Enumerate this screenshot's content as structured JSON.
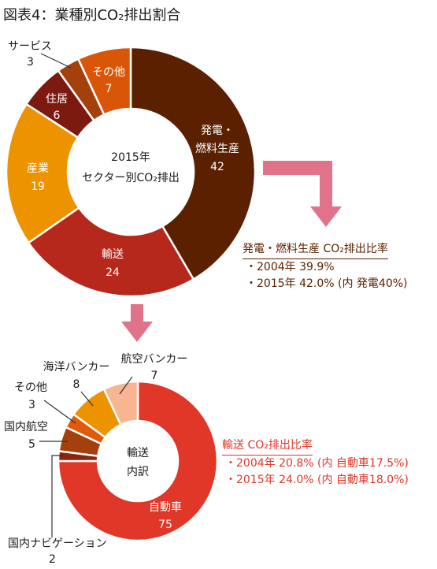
{
  "page_title": "図表4：業種別CO₂排出割合",
  "colors": {
    "power": "#5a2000",
    "transport": "#b6281c",
    "industry": "#ee9300",
    "residential": "#7c1a10",
    "service": "#a3400c",
    "other": "#d95508",
    "car": "#e03728",
    "domestic_navigation": "#8a2510",
    "domestic_aviation": "#a3400c",
    "other_transport": "#df5a0a",
    "marine_bunker": "#ee9300",
    "aviation_bunker": "#f7b592",
    "arrow": "#e0728a",
    "brown_text": "#5a2000",
    "red_text": "#e03728"
  },
  "chart_data": [
    {
      "type": "pie",
      "variant": "donut",
      "center_label": [
        "2015年",
        "セクター別CO₂排出"
      ],
      "start": "12 o'clock",
      "direction": "clockwise",
      "slices": [
        {
          "label": "発電・燃料生産",
          "value": 42,
          "color_key": "power"
        },
        {
          "label": "輸送",
          "value": 24,
          "color_key": "transport"
        },
        {
          "label": "産業",
          "value": 19,
          "color_key": "industry"
        },
        {
          "label": "住居",
          "value": 6,
          "color_key": "residential"
        },
        {
          "label": "サービス",
          "value": 3,
          "color_key": "service"
        },
        {
          "label": "その他",
          "value": 7,
          "color_key": "other"
        }
      ]
    },
    {
      "type": "pie",
      "variant": "donut",
      "center_label": [
        "輸送",
        "内訳"
      ],
      "start": "12 o'clock",
      "direction": "clockwise",
      "slices": [
        {
          "label": "自動車",
          "value": 75,
          "color_key": "car"
        },
        {
          "label": "国内ナビゲーション",
          "value": 2,
          "color_key": "domestic_navigation"
        },
        {
          "label": "国内航空",
          "value": 5,
          "color_key": "domestic_aviation"
        },
        {
          "label": "その他",
          "value": 3,
          "color_key": "other_transport"
        },
        {
          "label": "海洋バンカー",
          "value": 8,
          "color_key": "marine_bunker"
        },
        {
          "label": "航空バンカー",
          "value": 7,
          "color_key": "aviation_bunker"
        }
      ]
    }
  ],
  "labels1": {
    "power_line1": "発電・",
    "power_line2": "燃料生産",
    "power_value": "42",
    "transport_name": "輸送",
    "transport_value": "24",
    "industry_name": "産業",
    "industry_value": "19",
    "residential_name": "住居",
    "residential_value": "6",
    "other_name": "その他",
    "other_value": "7",
    "service_name": "サービス",
    "service_value": "3",
    "center_line1": "2015年",
    "center_line2": "セクター別CO₂排出"
  },
  "labels2": {
    "car_name": "自動車",
    "car_value": "75",
    "center_line1": "輸送",
    "center_line2": "内訳",
    "aviation_bunker_name": "航空バンカー",
    "aviation_bunker_value": "7",
    "marine_bunker_name": "海洋バンカー",
    "marine_bunker_value": "8",
    "other_name": "その他",
    "other_value": "3",
    "domestic_aviation_name": "国内航空",
    "domestic_aviation_value": "5",
    "domestic_navigation_name": "国内ナビゲーション",
    "domestic_navigation_value": "2"
  },
  "power_note": {
    "heading": "発電・燃料生産 CO₂排出比率",
    "rows": [
      "・2004年 39.9%",
      "・2015年 42.0% (内 発電40%)"
    ]
  },
  "transport_note": {
    "heading": "輸送 CO₂排出比率",
    "rows": [
      "・2004年 20.8% (内 自動車17.5%)",
      "・2015年 24.0% (内 自動車18.0%)"
    ]
  }
}
